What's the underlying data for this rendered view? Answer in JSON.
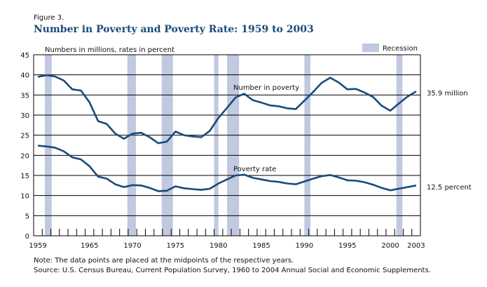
{
  "figure_label": "Figure 3.",
  "chart_data": {
    "type": "line",
    "title": "Number in Poverty and Poverty Rate:  1959 to 2003",
    "ylabel": "Numbers in millions, rates in percent",
    "ylim": [
      0,
      45
    ],
    "yticks": [
      0,
      5,
      10,
      15,
      20,
      25,
      30,
      35,
      40,
      45
    ],
    "xlim": [
      1959,
      2003
    ],
    "xtick_labels": [
      "1959",
      "1965",
      "1970",
      "1975",
      "1980",
      "1985",
      "1990",
      "1995",
      "2000",
      "2003"
    ],
    "grid": "horizontal",
    "legend": {
      "label": "Recession",
      "placement": "top-right",
      "color": "#c0c9e0"
    },
    "line_color": "#1b4a7a",
    "recessions": [
      [
        1960.3,
        1961.1
      ],
      [
        1969.9,
        1970.9
      ],
      [
        1973.9,
        1975.2
      ],
      [
        1980.0,
        1980.5
      ],
      [
        1981.5,
        1982.9
      ],
      [
        1990.5,
        1991.2
      ],
      [
        2001.2,
        2001.9
      ]
    ],
    "years": [
      1959,
      1960,
      1961,
      1962,
      1963,
      1964,
      1965,
      1966,
      1967,
      1968,
      1969,
      1970,
      1971,
      1972,
      1973,
      1974,
      1975,
      1976,
      1977,
      1978,
      1979,
      1980,
      1981,
      1982,
      1983,
      1984,
      1985,
      1986,
      1987,
      1988,
      1989,
      1990,
      1991,
      1992,
      1993,
      1994,
      1995,
      1996,
      1997,
      1998,
      1999,
      2000,
      2001,
      2002,
      2003
    ],
    "series": [
      {
        "name": "Number in poverty",
        "end_label": "35.9 million",
        "values": [
          39.5,
          39.9,
          39.6,
          38.6,
          36.4,
          36.1,
          33.2,
          28.5,
          27.8,
          25.4,
          24.1,
          25.4,
          25.6,
          24.5,
          23.0,
          23.4,
          25.9,
          25.0,
          24.7,
          24.5,
          26.1,
          29.3,
          31.8,
          34.4,
          35.3,
          33.7,
          33.1,
          32.4,
          32.2,
          31.7,
          31.5,
          33.6,
          35.7,
          38.0,
          39.3,
          38.1,
          36.4,
          36.5,
          35.6,
          34.5,
          32.3,
          31.1,
          32.9,
          34.6,
          35.9
        ]
      },
      {
        "name": "Poverty rate",
        "end_label": "12.5 percent",
        "values": [
          22.4,
          22.2,
          21.9,
          21.0,
          19.5,
          19.0,
          17.3,
          14.7,
          14.2,
          12.8,
          12.1,
          12.6,
          12.5,
          11.9,
          11.1,
          11.2,
          12.3,
          11.8,
          11.6,
          11.4,
          11.7,
          13.0,
          14.0,
          15.0,
          15.2,
          14.4,
          14.0,
          13.6,
          13.4,
          13.0,
          12.8,
          13.5,
          14.2,
          14.8,
          15.1,
          14.5,
          13.8,
          13.7,
          13.3,
          12.7,
          11.9,
          11.3,
          11.7,
          12.1,
          12.5
        ]
      }
    ]
  },
  "note": "Note:  The data points are placed at the midpoints of the respective years.",
  "source": "Source:  U.S. Census Bureau, Current Population Survey, 1960 to 2004 Annual Social and Economic Supplements."
}
